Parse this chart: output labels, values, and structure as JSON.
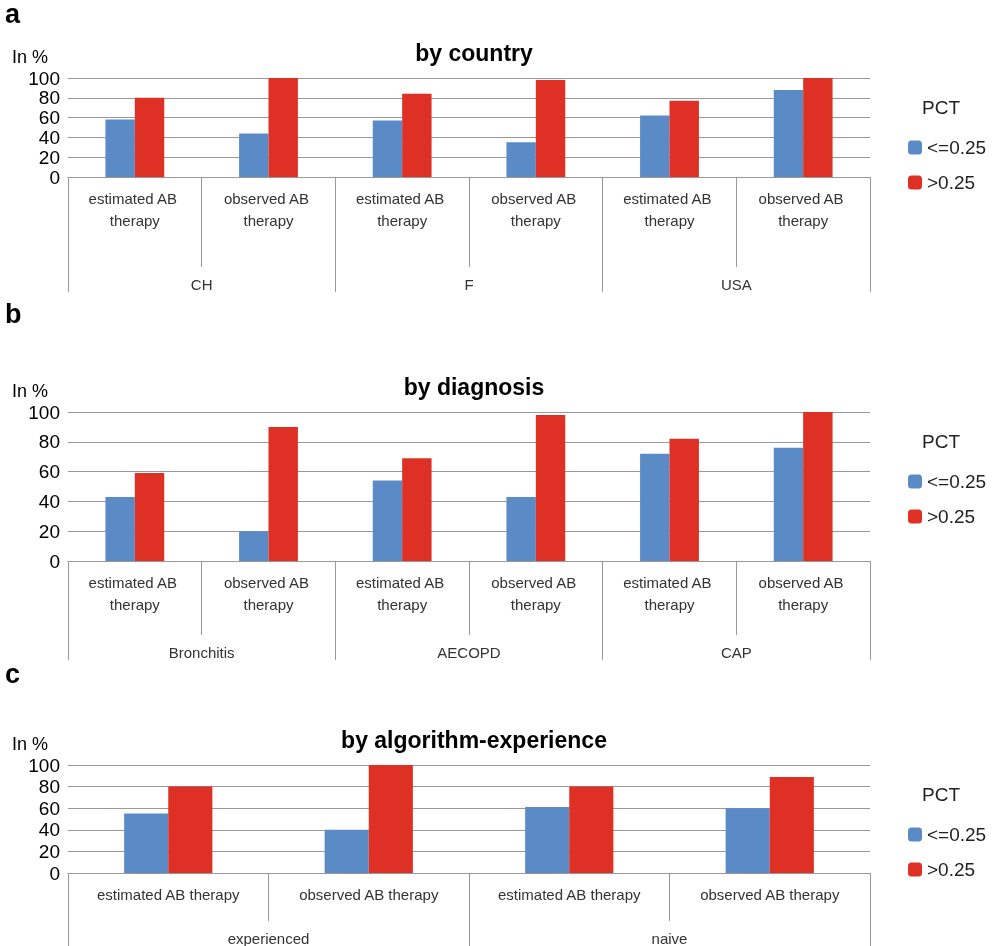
{
  "chart_data": [
    {
      "type": "bar",
      "title": "by country",
      "ylabel": "In %",
      "legend_title": "PCT",
      "legend": "right",
      "grid": "y",
      "annotations": [
        "a",
        "CH",
        "F",
        "USA"
      ],
      "categories": [
        "estimated AB therapy",
        "observed AB therapy",
        "estimated AB therapy",
        "observed AB therapy",
        "estimated AB therapy",
        "observed AB therapy"
      ],
      "ylim": [
        0,
        100
      ],
      "yticks": [
        0,
        20,
        40,
        60,
        80,
        100
      ],
      "series": [
        {
          "name": "<=0.25",
          "color": "#5b8bc7",
          "values": [
            58,
            44,
            57,
            35,
            62,
            88
          ]
        },
        {
          "name": ">0.25",
          "color": "#de3024",
          "values": [
            80,
            100,
            84,
            98,
            77,
            100
          ]
        }
      ]
    },
    {
      "type": "bar",
      "title": "by diagnosis",
      "ylabel": "In %",
      "legend_title": "PCT",
      "legend": "right",
      "grid": "y",
      "annotations": [
        "b",
        "Bronchitis",
        "AECOPD",
        "CAP"
      ],
      "categories": [
        "estimated AB therapy",
        "observed AB therapy",
        "estimated AB therapy",
        "observed AB therapy",
        "estimated AB therapy",
        "observed AB therapy"
      ],
      "ylim": [
        0,
        100
      ],
      "yticks": [
        0,
        20,
        40,
        60,
        80,
        100
      ],
      "series": [
        {
          "name": "<=0.25",
          "color": "#5b8bc7",
          "values": [
            43,
            20,
            54,
            43,
            72,
            76
          ]
        },
        {
          "name": ">0.25",
          "color": "#de3024",
          "values": [
            59,
            90,
            69,
            98,
            82,
            100
          ]
        }
      ]
    },
    {
      "type": "bar",
      "title": "by algorithm-experience",
      "ylabel": "In %",
      "legend_title": "PCT",
      "legend": "right",
      "grid": "y",
      "annotations": [
        "c",
        "experienced",
        "naive"
      ],
      "categories": [
        "estimated AB therapy",
        "observed AB therapy",
        "estimated AB therapy",
        "observed AB therapy"
      ],
      "ylim": [
        0,
        100
      ],
      "yticks": [
        0,
        20,
        40,
        60,
        80,
        100
      ],
      "series": [
        {
          "name": "<=0.25",
          "color": "#5b8bc7",
          "values": [
            55,
            40,
            61,
            60
          ]
        },
        {
          "name": ">0.25",
          "color": "#de3024",
          "values": [
            80,
            100,
            80,
            89
          ]
        }
      ]
    }
  ]
}
